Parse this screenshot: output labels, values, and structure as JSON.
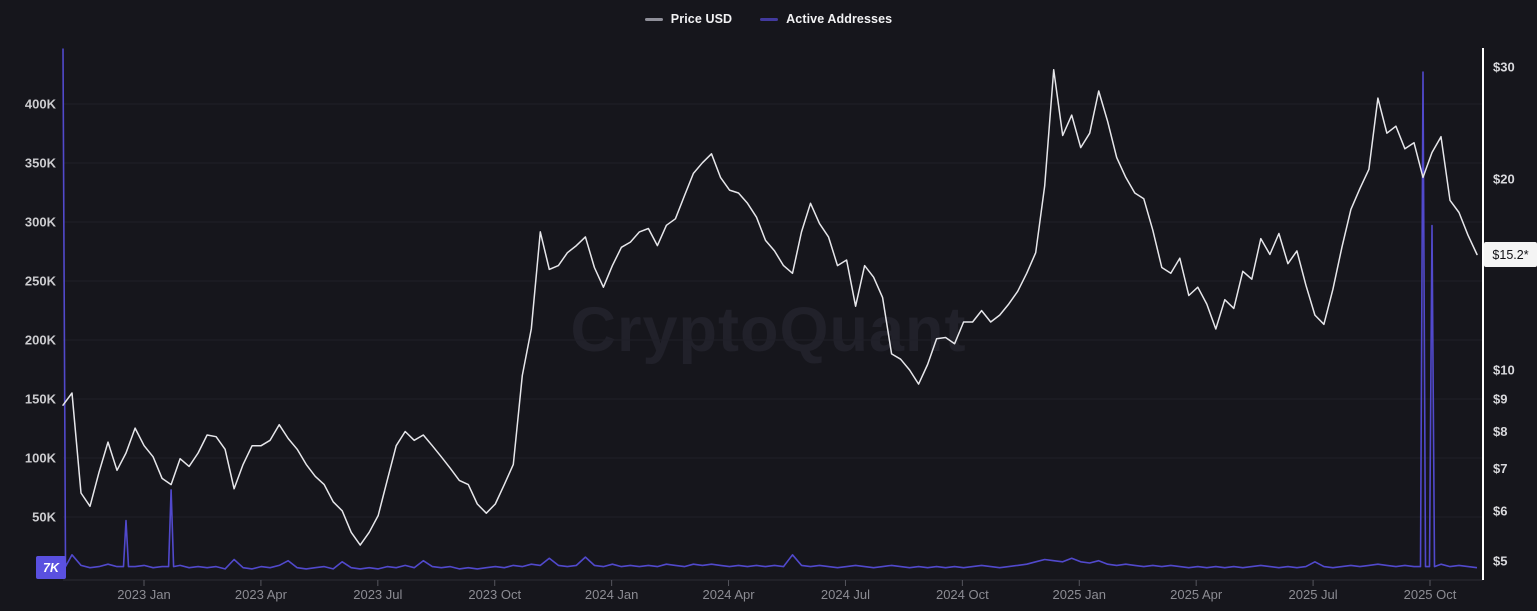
{
  "legend": {
    "items": [
      {
        "label": "Price USD",
        "swatch_color": "#8f8f99"
      },
      {
        "label": "Active Addresses",
        "swatch_color": "#423a9e"
      }
    ]
  },
  "watermark_text": "CryptoQuant",
  "colors": {
    "background": "#16161c",
    "price_line": "#e6e6ea",
    "active_addresses_line": "#5149cc",
    "aa_badge_bg": "#5a50e0",
    "price_badge_bg": "#f4f4f4",
    "grid": "#202028",
    "right_axis_line": "#ffffff",
    "x_axis_line": "#2c2c34",
    "tick_mark": "#55555e",
    "x_label": "#8c8c93",
    "y_label": "#cccccf"
  },
  "chart_data": {
    "type": "line",
    "title": "",
    "sampling": "weekly",
    "x_range": {
      "start": "2022-11",
      "end": "2025-11"
    },
    "x_tick_labels": [
      "2023 Jan",
      "2023 Apr",
      "2023 Jul",
      "2023 Oct",
      "2024 Jan",
      "2024 Apr",
      "2024 Jul",
      "2024 Oct",
      "2025 Jan",
      "2025 Apr",
      "2025 Jul",
      "2025 Oct"
    ],
    "left_axis": {
      "label": "Active Addresses",
      "unit": "K",
      "scale": "linear",
      "ticks": [
        400,
        350,
        300,
        250,
        200,
        150,
        100,
        50
      ],
      "tick_labels": [
        "400K",
        "350K",
        "300K",
        "250K",
        "200K",
        "150K",
        "100K",
        "50K"
      ],
      "range_k": [
        0,
        450
      ]
    },
    "right_axis": {
      "label": "Price USD",
      "unit": "USD",
      "scale": "log",
      "ticks": [
        30,
        20,
        10,
        9,
        8,
        7,
        6,
        5
      ],
      "tick_labels": [
        "$30",
        "$20",
        "$10",
        "$9",
        "$8",
        "$7",
        "$6",
        "$5"
      ],
      "range_usd": [
        4.7,
        31
      ]
    },
    "series": [
      {
        "name": "Price USD",
        "axis": "right",
        "unit": "USD",
        "values": [
          8.8,
          9.2,
          6.4,
          6.1,
          6.9,
          7.7,
          6.95,
          7.4,
          8.1,
          7.6,
          7.3,
          6.75,
          6.6,
          7.25,
          7.05,
          7.4,
          7.9,
          7.85,
          7.5,
          6.5,
          7.1,
          7.6,
          7.6,
          7.75,
          8.2,
          7.8,
          7.5,
          7.1,
          6.8,
          6.6,
          6.2,
          6.0,
          5.55,
          5.3,
          5.55,
          5.9,
          6.7,
          7.6,
          8.0,
          7.75,
          7.9,
          7.6,
          7.3,
          7.0,
          6.7,
          6.6,
          6.15,
          5.95,
          6.15,
          6.6,
          7.1,
          9.8,
          11.6,
          16.5,
          14.4,
          14.6,
          15.3,
          15.7,
          16.2,
          14.5,
          13.5,
          14.6,
          15.6,
          15.9,
          16.5,
          16.7,
          15.7,
          16.9,
          17.3,
          18.8,
          20.4,
          21.2,
          21.9,
          20.1,
          19.2,
          19.0,
          18.3,
          17.4,
          16.0,
          15.4,
          14.6,
          14.2,
          16.5,
          18.3,
          17.0,
          16.2,
          14.6,
          14.9,
          12.6,
          14.6,
          14.0,
          13.0,
          10.6,
          10.4,
          10.0,
          9.5,
          10.2,
          11.2,
          11.25,
          11.0,
          11.9,
          11.9,
          12.4,
          11.9,
          12.2,
          12.7,
          13.3,
          14.2,
          15.3,
          19.5,
          29.7,
          23.4,
          25.2,
          22.4,
          23.6,
          27.5,
          24.6,
          21.6,
          20.1,
          19.0,
          18.6,
          16.6,
          14.5,
          14.2,
          15.0,
          13.1,
          13.5,
          12.7,
          11.6,
          12.9,
          12.5,
          14.3,
          13.9,
          16.1,
          15.2,
          16.4,
          14.7,
          15.4,
          13.6,
          12.2,
          11.8,
          13.4,
          15.6,
          17.9,
          19.3,
          20.7,
          26.8,
          23.6,
          24.2,
          22.3,
          22.8,
          20.1,
          22.0,
          23.3,
          18.5,
          17.7,
          16.3,
          15.2
        ]
      },
      {
        "name": "Active Addresses",
        "axis": "left",
        "unit": "thousand_addresses",
        "values": [
          447,
          18,
          9,
          7,
          8,
          10,
          8,
          47,
          8,
          9,
          7,
          8,
          73,
          9,
          7,
          8,
          7,
          8,
          6,
          14,
          7,
          6,
          8,
          7,
          9,
          13,
          7,
          6,
          7,
          8,
          6,
          12,
          7,
          6,
          7,
          6,
          8,
          7,
          9,
          7,
          13,
          8,
          7,
          8,
          6,
          7,
          6,
          7,
          8,
          7,
          9,
          8,
          10,
          9,
          15,
          9,
          8,
          9,
          16,
          9,
          8,
          10,
          8,
          9,
          8,
          9,
          8,
          10,
          9,
          8,
          10,
          9,
          10,
          9,
          8,
          9,
          8,
          9,
          8,
          9,
          8,
          18,
          9,
          8,
          9,
          8,
          7,
          8,
          9,
          8,
          7,
          8,
          9,
          8,
          7,
          8,
          7,
          8,
          7,
          8,
          7,
          8,
          9,
          8,
          7,
          8,
          9,
          10,
          12,
          14,
          13,
          12,
          15,
          12,
          11,
          13,
          10,
          9,
          10,
          9,
          8,
          9,
          8,
          9,
          8,
          7,
          8,
          7,
          8,
          7,
          8,
          7,
          8,
          9,
          8,
          7,
          8,
          7,
          8,
          12,
          8,
          7,
          8,
          9,
          8,
          9,
          10,
          9,
          8,
          9,
          8,
          427,
          297,
          10,
          8,
          9,
          8,
          7
        ]
      }
    ],
    "current": {
      "price_usd": 15.2,
      "price_label": "$15.2*",
      "active_addresses_k": 7,
      "active_addresses_label": "7K"
    },
    "grid": "horizontal-left-ticks",
    "legend_position": "top-center"
  }
}
